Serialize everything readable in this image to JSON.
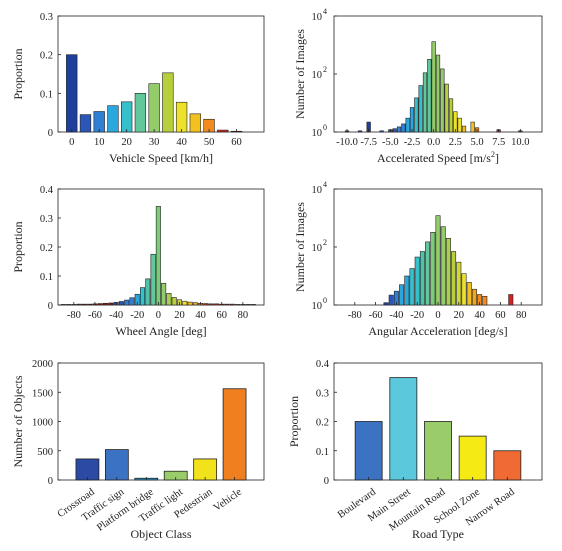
{
  "chart_data": [
    {
      "id": "speed",
      "type": "bar",
      "xlabel": "Vehicle Speed [km/h]",
      "ylabel": "Proportion",
      "xlim": [
        -5,
        70
      ],
      "ylim": [
        0,
        0.3
      ],
      "xticks": [
        0,
        10,
        20,
        30,
        40,
        50,
        60
      ],
      "yticks": [
        0,
        0.1,
        0.2,
        0.3
      ],
      "x": [
        0,
        5,
        10,
        15,
        20,
        25,
        30,
        35,
        40,
        45,
        50,
        55,
        60
      ],
      "values": [
        0.2,
        0.045,
        0.053,
        0.068,
        0.078,
        0.1,
        0.125,
        0.153,
        0.077,
        0.047,
        0.033,
        0.005,
        0.002
      ],
      "colors": [
        "#1f3f9c",
        "#2b55b7",
        "#2f7fd4",
        "#2aa8dd",
        "#35c0cc",
        "#62c79a",
        "#95cc6a",
        "#b8cf3b",
        "#eee12c",
        "#f3c11f",
        "#f08b1c",
        "#c9261c",
        "#8e1010"
      ]
    },
    {
      "id": "accel",
      "type": "bar",
      "yscale": "log",
      "xlabel": "Accelerated Speed [m/s",
      "xlabel_sup": "2",
      "xlabel_close": "]",
      "ylabel": "Number of Images",
      "xlim": [
        -11.5,
        12.5
      ],
      "ylim": [
        1,
        10000
      ],
      "xticks": [
        -10,
        -7.5,
        -5,
        -2.5,
        0,
        2.5,
        5,
        7.5,
        10
      ],
      "xticklabels": [
        "-10.0",
        "-7.5",
        "-5.0",
        "-2.5",
        "0.0",
        "2.5",
        "5.0",
        "7.5",
        "10.0"
      ],
      "yticks": [
        1,
        100,
        10000
      ],
      "yticklabels": [
        [
          "10",
          "0"
        ],
        [
          "10",
          "2"
        ],
        [
          "10",
          "4"
        ]
      ],
      "x": [
        -10,
        -8.5,
        -7.5,
        -6,
        -5,
        -4.5,
        -4,
        -3.5,
        -3,
        -2.5,
        -2,
        -1.5,
        -1,
        -0.5,
        0,
        0.5,
        1,
        1.5,
        2,
        2.5,
        3,
        3.5,
        4.5,
        5,
        7.5,
        10
      ],
      "values": [
        1.1,
        1.1,
        2.2,
        1.1,
        1.2,
        1.3,
        1.5,
        1.9,
        3,
        7,
        15,
        40,
        110,
        320,
        1300,
        450,
        150,
        45,
        14,
        5,
        3,
        1.6,
        2.2,
        1.4,
        1.2,
        1.1
      ],
      "colors": [
        "#1f3f9c",
        "#1f3f9c",
        "#1f3f9c",
        "#2b55b7",
        "#2b55b7",
        "#2b55b7",
        "#2f7fd4",
        "#2f7fd4",
        "#2aa8dd",
        "#2aa8dd",
        "#35c0cc",
        "#35c0cc",
        "#62c79a",
        "#62c79a",
        "#95cc6a",
        "#95cc6a",
        "#95cc6a",
        "#b8cf3b",
        "#b8cf3b",
        "#eee12c",
        "#eee12c",
        "#f3c11f",
        "#f3c11f",
        "#f08b1c",
        "#c9261c",
        "#c9261c"
      ]
    },
    {
      "id": "wheel",
      "type": "bar",
      "xlabel": "Wheel Angle [deg]",
      "ylabel": "Proportion",
      "xlim": [
        -95,
        100
      ],
      "ylim": [
        0,
        0.4
      ],
      "xticks": [
        -80,
        -60,
        -40,
        -20,
        0,
        20,
        40,
        60,
        80
      ],
      "yticks": [
        0,
        0.1,
        0.2,
        0.3,
        0.4
      ],
      "x": [
        -90,
        -85,
        -80,
        -75,
        -70,
        -65,
        -60,
        -55,
        -50,
        -45,
        -40,
        -35,
        -30,
        -25,
        -20,
        -15,
        -10,
        -5,
        0,
        5,
        10,
        15,
        20,
        25,
        30,
        35,
        40,
        45,
        50,
        55,
        60,
        65,
        70,
        75,
        80,
        85,
        90
      ],
      "values": [
        0.002,
        0.002,
        0.002,
        0.003,
        0.003,
        0.003,
        0.004,
        0.005,
        0.006,
        0.007,
        0.009,
        0.012,
        0.017,
        0.025,
        0.037,
        0.06,
        0.09,
        0.175,
        0.34,
        0.075,
        0.04,
        0.026,
        0.018,
        0.013,
        0.01,
        0.008,
        0.006,
        0.005,
        0.004,
        0.004,
        0.003,
        0.003,
        0.003,
        0.002,
        0.002,
        0.002,
        0.002
      ],
      "colors": [
        "#8e1010",
        "#8e1010",
        "#8e1010",
        "#8e1010",
        "#8e1010",
        "#8e1010",
        "#8e1010",
        "#8e1010",
        "#8e1010",
        "#8e1010",
        "#2b55b7",
        "#2b55b7",
        "#2f7fd4",
        "#2f7fd4",
        "#2aa8dd",
        "#35c0cc",
        "#4ec3a9",
        "#62c79a",
        "#7ccb7b",
        "#95cc6a",
        "#a9ce52",
        "#b8cf3b",
        "#d4d733",
        "#eee12c",
        "#f3c11f",
        "#f3a51e",
        "#f08b1c",
        "#c9261c",
        "#c9261c",
        "#c9261c",
        "#c9261c",
        "#c9261c",
        "#c9261c",
        "#c9261c",
        "#c9261c",
        "#c9261c",
        "#c9261c"
      ]
    },
    {
      "id": "angular",
      "type": "bar",
      "yscale": "log",
      "xlabel": "Angular Acceleration [deg/s]",
      "ylabel": "Number of Images",
      "xlim": [
        -100,
        100
      ],
      "ylim": [
        1,
        10000
      ],
      "xticks": [
        -80,
        -60,
        -40,
        -20,
        0,
        20,
        40,
        60,
        80
      ],
      "yticks": [
        1,
        100,
        10000
      ],
      "yticklabels": [
        [
          "10",
          "0"
        ],
        [
          "10",
          "2"
        ],
        [
          "10",
          "4"
        ]
      ],
      "x": [
        -50,
        -45,
        -40,
        -35,
        -30,
        -25,
        -20,
        -15,
        -10,
        -5,
        0,
        5,
        10,
        15,
        20,
        25,
        30,
        35,
        40,
        45,
        70
      ],
      "values": [
        1.2,
        2.2,
        3,
        5,
        10,
        18,
        45,
        70,
        150,
        320,
        1200,
        500,
        200,
        70,
        30,
        12,
        6,
        3.5,
        2.3,
        2,
        2.3
      ],
      "colors": [
        "#1f3f9c",
        "#2b55b7",
        "#2f7fd4",
        "#2aa8dd",
        "#2aa8dd",
        "#35c0cc",
        "#35c0cc",
        "#4ec3a9",
        "#62c79a",
        "#7ccb7b",
        "#95cc6a",
        "#95cc6a",
        "#a9ce52",
        "#b8cf3b",
        "#d4d733",
        "#eee12c",
        "#f3c11f",
        "#f3a51e",
        "#f08b1c",
        "#f08b1c",
        "#d81f1f"
      ]
    },
    {
      "id": "objects",
      "type": "bar",
      "xlabel": "Object Class",
      "ylabel": "Number of Objects",
      "ylim": [
        0,
        2000
      ],
      "yticks": [
        0,
        500,
        1000,
        1500,
        2000
      ],
      "categories": [
        "Crossroad",
        "Traffic sign",
        "Platform bridge",
        "Traffic light",
        "Pedestrian",
        "Vehicle"
      ],
      "values": [
        360,
        520,
        30,
        150,
        360,
        1560
      ],
      "colors": [
        "#2a4aa3",
        "#3b73c2",
        "#2b9bd0",
        "#9acd6a",
        "#f2e21c",
        "#f07f20"
      ]
    },
    {
      "id": "road",
      "type": "bar",
      "xlabel": "Road Type",
      "ylabel": "Proportion",
      "ylim": [
        0,
        0.4
      ],
      "yticks": [
        0,
        0.1,
        0.2,
        0.3,
        0.4
      ],
      "categories": [
        "Boulevard",
        "Main Street",
        "Mountain Road",
        "School Zone",
        "Narrow Road"
      ],
      "values": [
        0.2,
        0.35,
        0.2,
        0.15,
        0.1
      ],
      "colors": [
        "#3b73c2",
        "#5bc8dc",
        "#9acd6a",
        "#f5ea14",
        "#f06b34"
      ]
    }
  ]
}
